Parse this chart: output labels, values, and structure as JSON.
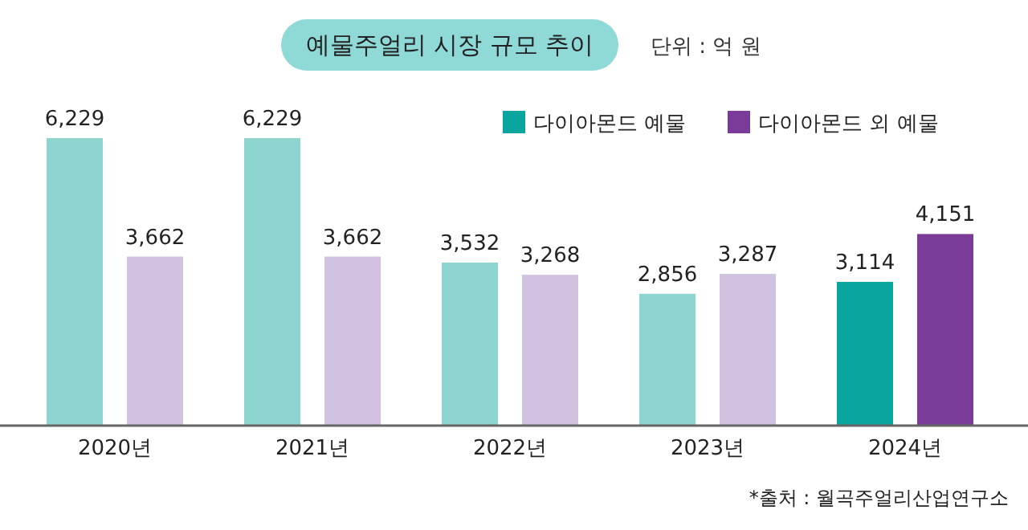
{
  "chart_data": {
    "type": "bar",
    "title": "예물주얼리 시장 규모 추이",
    "subtitle": "단위 : 억 원",
    "categories": [
      "2020년",
      "2021년",
      "2022년",
      "2023년",
      "2024년"
    ],
    "series": [
      {
        "name": "다이아몬드 예물",
        "color": "#0aa59f",
        "colors": [
          "#8fd5cf",
          "#8fd5cf",
          "#8fd5cf",
          "#8fd5cf",
          "#0aa59f"
        ],
        "values": [
          6229,
          6229,
          3532,
          2856,
          3114
        ],
        "value_labels": [
          "6,229",
          "6,229",
          "3,532",
          "2,856",
          "3,114"
        ]
      },
      {
        "name": "다이아몬드 외 예물",
        "color": "#7b3b98",
        "colors": [
          "#d1c2e2",
          "#d1c2e2",
          "#d1c2e2",
          "#d1c2e2",
          "#7b3b98"
        ],
        "values": [
          3662,
          3662,
          3268,
          3287,
          4151
        ],
        "value_labels": [
          "3,662",
          "3,662",
          "3,268",
          "3,287",
          "4,151"
        ]
      }
    ],
    "legend": "top right",
    "annotations": [
      "*출처 : 월곡주얼리산업연구소"
    ]
  }
}
